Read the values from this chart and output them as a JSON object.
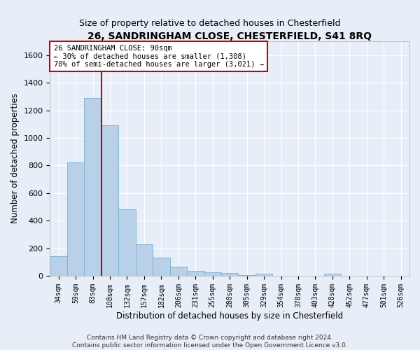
{
  "title": "26, SANDRINGHAM CLOSE, CHESTERFIELD, S41 8RQ",
  "subtitle": "Size of property relative to detached houses in Chesterfield",
  "xlabel": "Distribution of detached houses by size in Chesterfield",
  "ylabel": "Number of detached properties",
  "categories": [
    "34sqm",
    "59sqm",
    "83sqm",
    "108sqm",
    "132sqm",
    "157sqm",
    "182sqm",
    "206sqm",
    "231sqm",
    "255sqm",
    "280sqm",
    "305sqm",
    "329sqm",
    "354sqm",
    "378sqm",
    "403sqm",
    "428sqm",
    "452sqm",
    "477sqm",
    "501sqm",
    "526sqm"
  ],
  "values": [
    140,
    820,
    1290,
    1090,
    480,
    230,
    130,
    65,
    37,
    27,
    20,
    5,
    15,
    2,
    2,
    2,
    15,
    2,
    2,
    2,
    2
  ],
  "bar_color": "#b8d0e8",
  "bar_edge_color": "#7aafd4",
  "vline_x_index": 2,
  "vline_color": "#cc0000",
  "annotation_line1": "26 SANDRINGHAM CLOSE: 90sqm",
  "annotation_line2": "← 30% of detached houses are smaller (1,308)",
  "annotation_line3": "70% of semi-detached houses are larger (3,021) →",
  "annotation_box_color": "#ffffff",
  "annotation_box_edge_color": "#cc0000",
  "ylim": [
    0,
    1700
  ],
  "yticks": [
    0,
    200,
    400,
    600,
    800,
    1000,
    1200,
    1400,
    1600
  ],
  "background_color": "#e8eef8",
  "grid_color": "#ffffff",
  "footer_line1": "Contains HM Land Registry data © Crown copyright and database right 2024.",
  "footer_line2": "Contains public sector information licensed under the Open Government Licence v3.0.",
  "title_fontsize": 10,
  "subtitle_fontsize": 9,
  "xlabel_fontsize": 8.5,
  "ylabel_fontsize": 8.5,
  "tick_fontsize": 8,
  "annotation_fontsize": 7.5,
  "footer_fontsize": 6.5
}
